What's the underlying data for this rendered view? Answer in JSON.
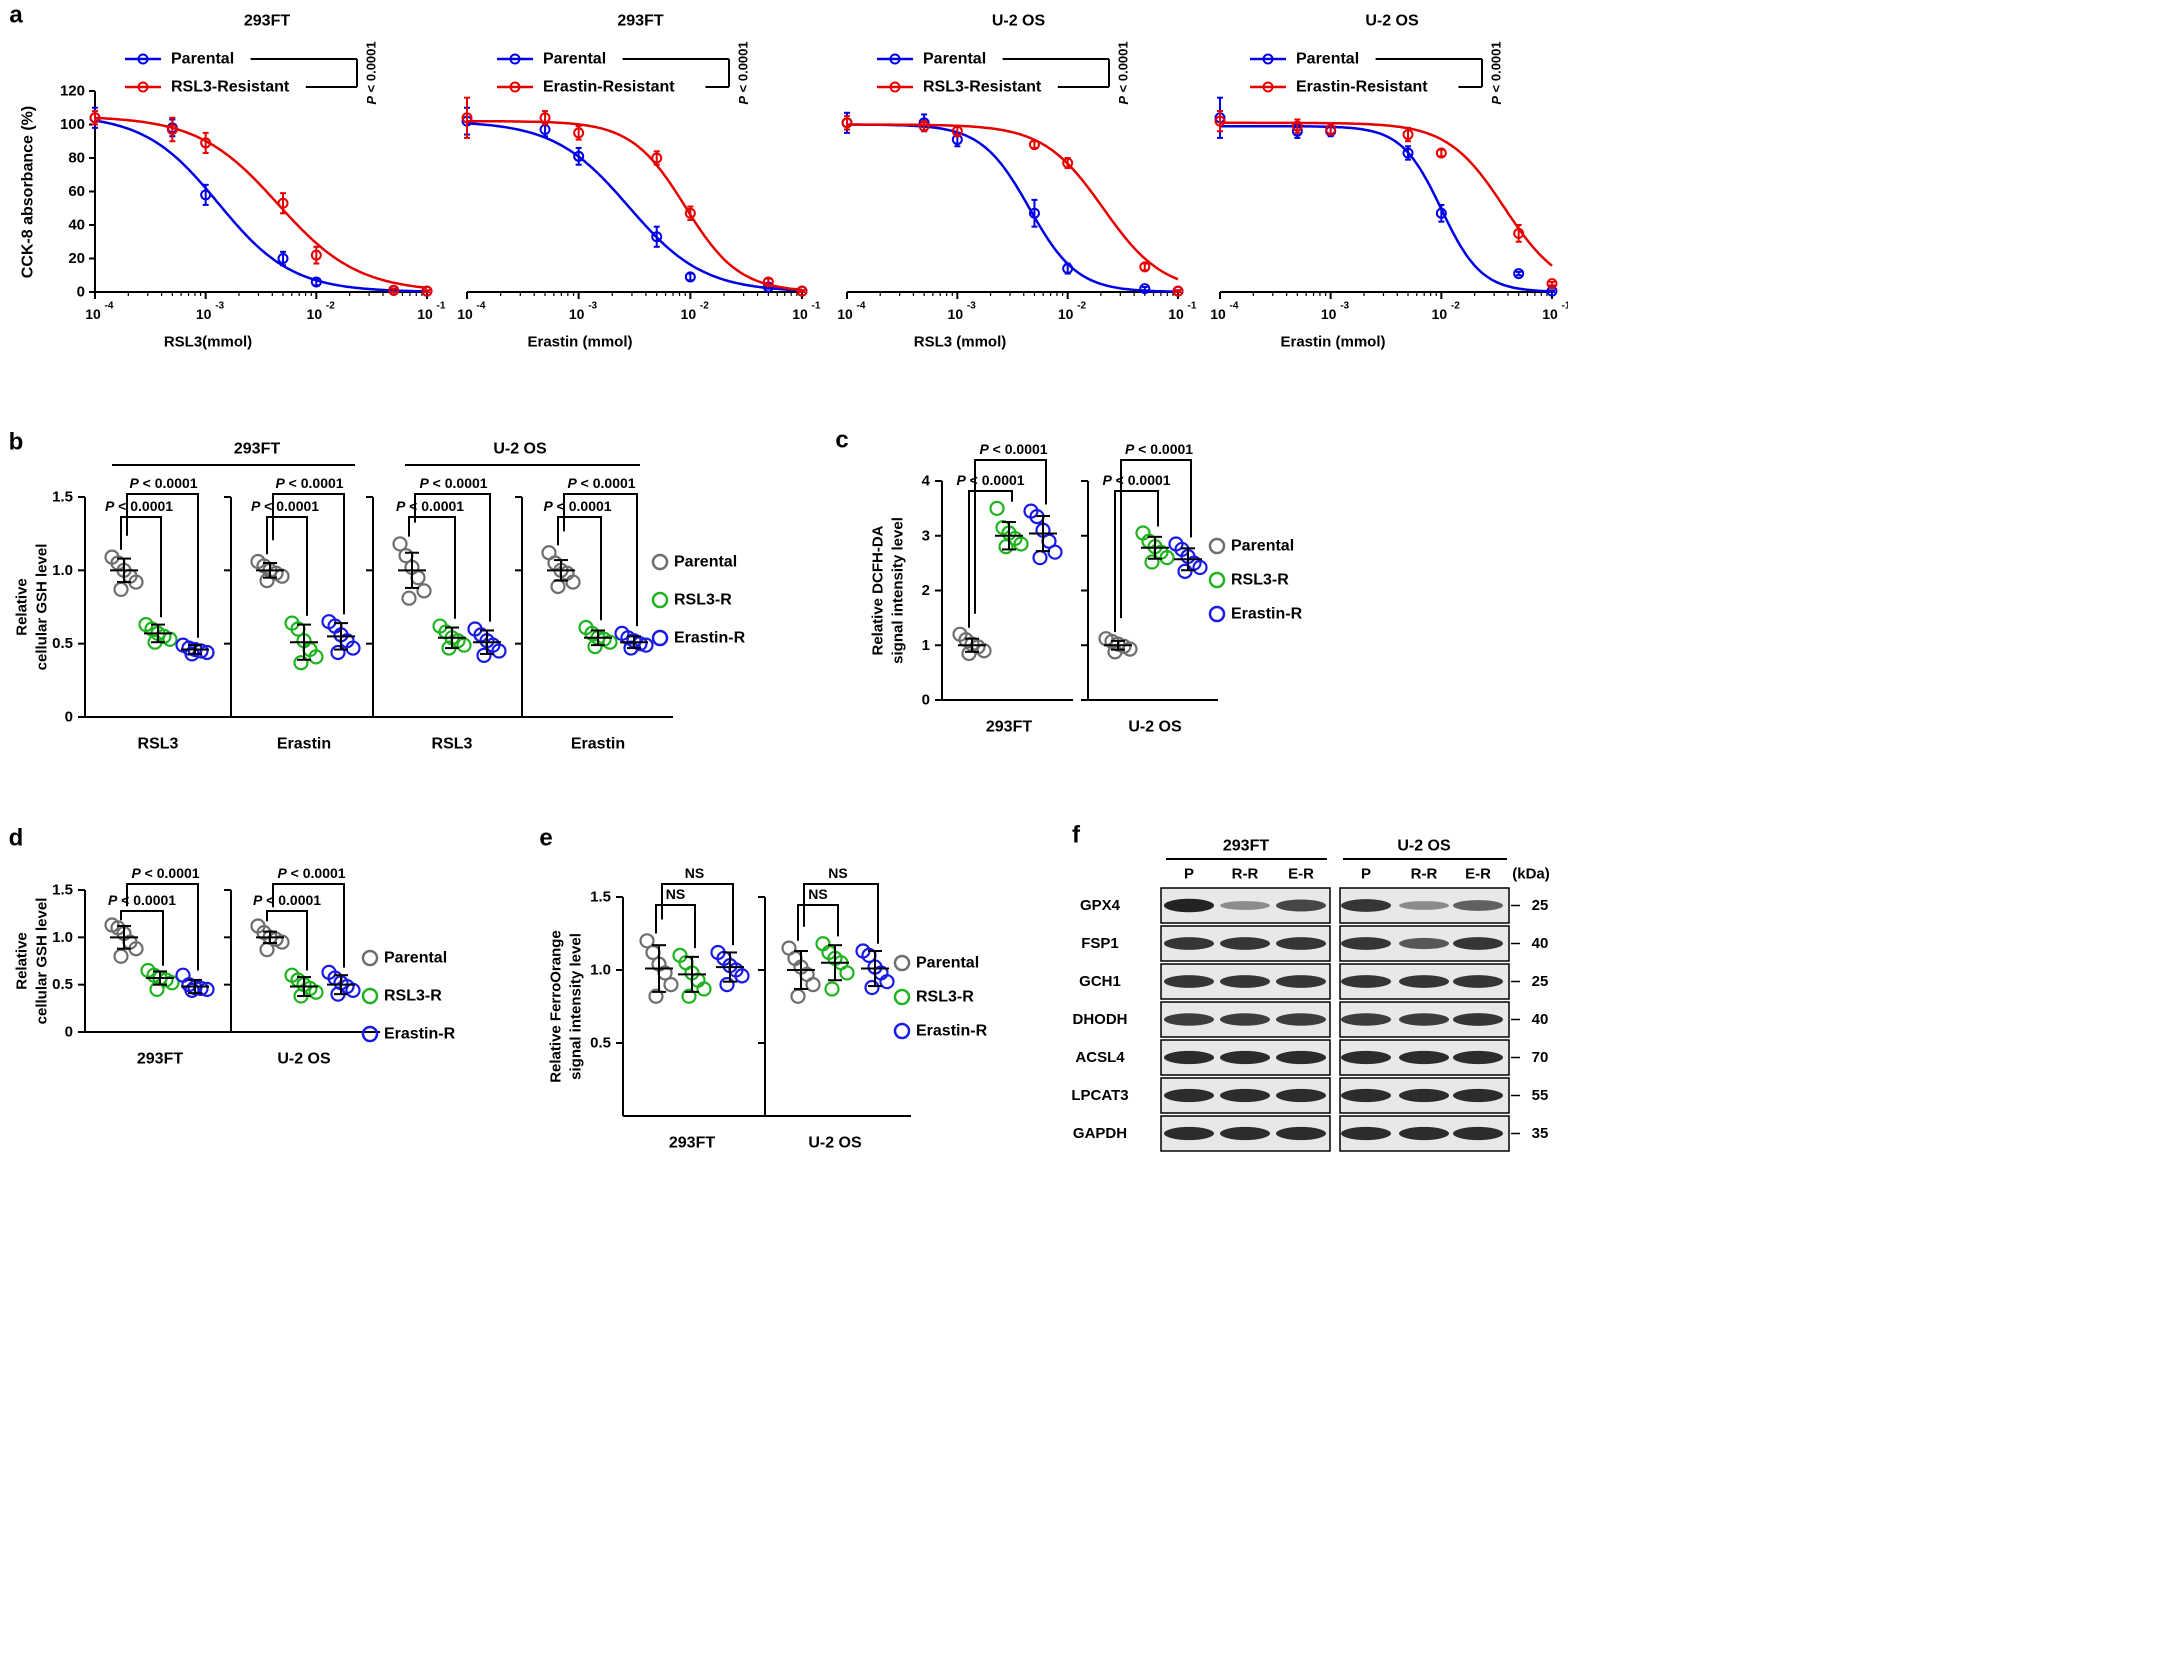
{
  "colors": {
    "parental": "#0000e6",
    "resistant": "#e60000",
    "gray": "#6e6e6e",
    "green": "#1fb31f",
    "blue": "#1a1ae6"
  },
  "chart_data": [
    {
      "panel": "a",
      "type": "line",
      "xscale": "log",
      "xlim": [
        0.0001,
        0.1
      ],
      "ylim": [
        0,
        120
      ],
      "ylabel": "CCK-8 absorbance (%)",
      "yticks": [
        "0",
        "20",
        "40",
        "60",
        "80",
        "100",
        "120"
      ],
      "xticks": [
        {
          "base": "10",
          "exp": "-4"
        },
        {
          "base": "10",
          "exp": "-3"
        },
        {
          "base": "10",
          "exp": "-2"
        },
        {
          "base": "10",
          "exp": "-1"
        }
      ],
      "pvalue_label": "P < 0.0001",
      "subplots": [
        {
          "title": "293FT",
          "xlabel": "RSL3(mmol)",
          "series": [
            {
              "name": "Parental",
              "color": "#0000e6",
              "x": [
                0.0001,
                0.0005,
                0.001,
                0.005,
                0.01,
                0.05,
                0.1
              ],
              "y": [
                104,
                98,
                58,
                20,
                6,
                1,
                0.5
              ],
              "err": [
                6,
                5,
                6,
                4,
                2,
                1,
                0.5
              ],
              "ic50": 0.0013,
              "hill": 1.3,
              "top": 106
            },
            {
              "name": "RSL3-Resistant",
              "color": "#e60000",
              "x": [
                0.0001,
                0.0005,
                0.001,
                0.005,
                0.01,
                0.05,
                0.1
              ],
              "y": [
                104,
                97,
                89,
                53,
                22,
                1,
                0.5
              ],
              "err": [
                4,
                7,
                6,
                6,
                5,
                1,
                0.5
              ],
              "ic50": 0.0045,
              "hill": 1.2,
              "top": 105
            }
          ]
        },
        {
          "title": "293FT",
          "xlabel": "Erastin (mmol)",
          "series": [
            {
              "name": "Parental",
              "color": "#0000e6",
              "x": [
                0.0001,
                0.0005,
                0.001,
                0.005,
                0.01,
                0.05,
                0.1
              ],
              "y": [
                102,
                97,
                81,
                33,
                9,
                3,
                0.5
              ],
              "err": [
                8,
                4,
                5,
                6,
                2,
                1,
                0.5
              ],
              "ic50": 0.0028,
              "hill": 1.3,
              "top": 102
            },
            {
              "name": "Erastin-Resistant",
              "color": "#e60000",
              "x": [
                0.0001,
                0.0005,
                0.001,
                0.005,
                0.01,
                0.05,
                0.1
              ],
              "y": [
                104,
                104,
                95,
                80,
                47,
                6,
                0.5
              ],
              "err": [
                12,
                4,
                4,
                4,
                4,
                2,
                0.5
              ],
              "ic50": 0.009,
              "hill": 1.8,
              "top": 102
            }
          ]
        },
        {
          "title": "U-2 OS",
          "xlabel": "RSL3 (mmol)",
          "series": [
            {
              "name": "Parental",
              "color": "#0000e6",
              "x": [
                0.0001,
                0.0005,
                0.001,
                0.005,
                0.01,
                0.05,
                0.1
              ],
              "y": [
                101,
                101,
                91,
                47,
                14,
                2,
                0.5
              ],
              "err": [
                6,
                5,
                4,
                8,
                3,
                1,
                0.5
              ],
              "ic50": 0.0045,
              "hill": 2.0,
              "top": 100
            },
            {
              "name": "RSL3-Resistant",
              "color": "#e60000",
              "x": [
                0.0001,
                0.0005,
                0.001,
                0.005,
                0.01,
                0.05,
                0.1
              ],
              "y": [
                101,
                99,
                96,
                88,
                77,
                15,
                0.5
              ],
              "err": [
                4,
                3,
                3,
                2,
                3,
                2,
                0.5
              ],
              "ic50": 0.021,
              "hill": 1.6,
              "top": 100
            }
          ]
        },
        {
          "title": "U-2 OS",
          "xlabel": "Erastin (mmol)",
          "series": [
            {
              "name": "Parental",
              "color": "#0000e6",
              "x": [
                0.0001,
                0.0005,
                0.001,
                0.005,
                0.01,
                0.05,
                0.1
              ],
              "y": [
                104,
                96,
                96,
                83,
                47,
                11,
                0.5
              ],
              "err": [
                12,
                4,
                3,
                4,
                5,
                1,
                0.5
              ],
              "ic50": 0.01,
              "hill": 2.4,
              "top": 99
            },
            {
              "name": "Erastin-Resistant",
              "color": "#e60000",
              "x": [
                0.0001,
                0.0005,
                0.001,
                0.005,
                0.01,
                0.05,
                0.1
              ],
              "y": [
                102,
                99,
                97,
                94,
                83,
                35,
                5
              ],
              "err": [
                6,
                4,
                3,
                4,
                2,
                5,
                1
              ],
              "ic50": 0.037,
              "hill": 1.7,
              "top": 101
            }
          ]
        }
      ]
    },
    {
      "panel": "b",
      "type": "scatter",
      "ylabel": [
        "Relative",
        "cellular GSH level"
      ],
      "ylim": [
        0,
        1.5
      ],
      "yticks": [
        "0",
        "0.5",
        "1.0",
        "1.5"
      ],
      "cell_lines": [
        "293FT",
        "U-2 OS"
      ],
      "legend": [
        "Parental",
        "RSL3-R",
        "Erastin-R"
      ],
      "groups": [
        {
          "label": "RSL3",
          "means": [
            1.0,
            0.57,
            0.46
          ],
          "sd": [
            0.08,
            0.06,
            0.03
          ],
          "points": [
            [
              1.09,
              1.05,
              1.0,
              0.96,
              0.92,
              0.87
            ],
            [
              0.63,
              0.6,
              0.57,
              0.55,
              0.53,
              0.51
            ],
            [
              0.49,
              0.47,
              0.46,
              0.45,
              0.44,
              0.43
            ]
          ],
          "pvals": [
            "P < 0.0001",
            "P < 0.0001"
          ]
        },
        {
          "label": "Erastin",
          "means": [
            1.0,
            0.51,
            0.55
          ],
          "sd": [
            0.05,
            0.12,
            0.09
          ],
          "points": [
            [
              1.06,
              1.03,
              1.0,
              0.98,
              0.96,
              0.93
            ],
            [
              0.64,
              0.6,
              0.52,
              0.46,
              0.41,
              0.37
            ],
            [
              0.65,
              0.62,
              0.56,
              0.52,
              0.47,
              0.44
            ]
          ],
          "pvals": [
            "P < 0.0001",
            "P < 0.0001"
          ]
        },
        {
          "label": "RSL3",
          "means": [
            1.0,
            0.54,
            0.51
          ],
          "sd": [
            0.12,
            0.07,
            0.08
          ],
          "points": [
            [
              1.18,
              1.1,
              1.02,
              0.95,
              0.86,
              0.81
            ],
            [
              0.62,
              0.58,
              0.54,
              0.52,
              0.49,
              0.47
            ],
            [
              0.6,
              0.56,
              0.52,
              0.49,
              0.45,
              0.42
            ]
          ],
          "pvals": [
            "P < 0.0001",
            "P < 0.0001"
          ]
        },
        {
          "label": "Erastin",
          "means": [
            1.0,
            0.54,
            0.51
          ],
          "sd": [
            0.07,
            0.05,
            0.04
          ],
          "points": [
            [
              1.12,
              1.05,
              1.0,
              0.98,
              0.92,
              0.89
            ],
            [
              0.61,
              0.57,
              0.54,
              0.53,
              0.51,
              0.48
            ],
            [
              0.57,
              0.54,
              0.52,
              0.5,
              0.49,
              0.47
            ]
          ],
          "pvals": [
            "P < 0.0001",
            "P < 0.0001"
          ]
        }
      ]
    },
    {
      "panel": "c",
      "type": "scatter",
      "ylabel": [
        "Relative DCFH-DA",
        "signal intensity level"
      ],
      "ylim": [
        0,
        4
      ],
      "yticks": [
        "0",
        "1",
        "2",
        "3",
        "4"
      ],
      "legend": [
        "Parental",
        "RSL3-R",
        "Erastin-R"
      ],
      "groups": [
        {
          "label": "293FT",
          "means": [
            1.0,
            3.0,
            3.04
          ],
          "sd": [
            0.12,
            0.25,
            0.32
          ],
          "points": [
            [
              1.2,
              1.1,
              1.02,
              0.97,
              0.9,
              0.85
            ],
            [
              3.5,
              3.15,
              3.05,
              2.95,
              2.85,
              2.8
            ],
            [
              3.45,
              3.35,
              3.1,
              2.9,
              2.7,
              2.6
            ]
          ],
          "pvals": [
            "P < 0.0001",
            "P < 0.0001"
          ]
        },
        {
          "label": "U-2 OS",
          "means": [
            1.0,
            2.78,
            2.57
          ],
          "sd": [
            0.08,
            0.2,
            0.2
          ],
          "points": [
            [
              1.12,
              1.07,
              1.02,
              0.98,
              0.93,
              0.88
            ],
            [
              3.05,
              2.9,
              2.8,
              2.7,
              2.6,
              2.52
            ],
            [
              2.85,
              2.75,
              2.62,
              2.5,
              2.42,
              2.35
            ]
          ],
          "pvals": [
            "P < 0.0001",
            "P < 0.0001"
          ]
        }
      ]
    },
    {
      "panel": "d",
      "type": "scatter",
      "ylabel": [
        "Relative",
        "cellular GSH level"
      ],
      "ylim": [
        0,
        1.5
      ],
      "yticks": [
        "0",
        "0.5",
        "1.0",
        "1.5"
      ],
      "legend": [
        "Parental",
        "RSL3-R",
        "Erastin-R"
      ],
      "groups": [
        {
          "label": "293FT",
          "means": [
            1.0,
            0.57,
            0.48
          ],
          "sd": [
            0.12,
            0.07,
            0.07
          ],
          "points": [
            [
              1.13,
              1.1,
              1.04,
              0.95,
              0.88,
              0.8
            ],
            [
              0.65,
              0.6,
              0.57,
              0.55,
              0.52,
              0.45
            ],
            [
              0.6,
              0.5,
              0.47,
              0.46,
              0.45,
              0.44
            ]
          ],
          "pvals": [
            "P < 0.0001",
            "P < 0.0001"
          ]
        },
        {
          "label": "U-2 OS",
          "means": [
            1.0,
            0.48,
            0.5
          ],
          "sd": [
            0.06,
            0.1,
            0.1
          ],
          "points": [
            [
              1.12,
              1.05,
              1.0,
              0.98,
              0.95,
              0.87
            ],
            [
              0.6,
              0.55,
              0.5,
              0.46,
              0.42,
              0.38
            ],
            [
              0.63,
              0.57,
              0.52,
              0.48,
              0.44,
              0.4
            ]
          ],
          "pvals": [
            "P < 0.0001",
            "P < 0.0001"
          ]
        }
      ]
    },
    {
      "panel": "e",
      "type": "scatter",
      "ylabel": [
        "Relative FerroOrange",
        "signal intensity level"
      ],
      "ylim": [
        0,
        1.5
      ],
      "yticks": [
        "0.5",
        "1.0",
        "1.5"
      ],
      "legend": [
        "Parental",
        "RSL3-R",
        "Erastin-R"
      ],
      "groups": [
        {
          "label": "293FT",
          "means": [
            1.01,
            0.97,
            1.02
          ],
          "sd": [
            0.16,
            0.12,
            0.1
          ],
          "points": [
            [
              1.2,
              1.12,
              1.04,
              0.98,
              0.9,
              0.82
            ],
            [
              1.1,
              1.05,
              0.98,
              0.93,
              0.87,
              0.82
            ],
            [
              1.12,
              1.08,
              1.03,
              1.0,
              0.96,
              0.9
            ]
          ],
          "pvals": [
            "NS",
            "NS"
          ]
        },
        {
          "label": "U-2 OS",
          "means": [
            1.0,
            1.05,
            1.01
          ],
          "sd": [
            0.13,
            0.12,
            0.12
          ],
          "points": [
            [
              1.15,
              1.08,
              1.02,
              0.97,
              0.9,
              0.82
            ],
            [
              1.18,
              1.12,
              1.08,
              1.05,
              0.98,
              0.87
            ],
            [
              1.13,
              1.1,
              1.02,
              0.98,
              0.92,
              0.88
            ]
          ],
          "pvals": [
            "NS",
            "NS"
          ]
        }
      ]
    },
    {
      "panel": "f",
      "type": "western_blot",
      "cell_lines": [
        "293FT",
        "U-2 OS"
      ],
      "lanes": [
        "P",
        "R-R",
        "E-R"
      ],
      "unit": "(kDa)",
      "rows": [
        {
          "protein": "GPX4",
          "kda": "25",
          "intensity": [
            [
              0.95,
              0.35,
              0.75
            ],
            [
              0.85,
              0.35,
              0.6
            ]
          ]
        },
        {
          "protein": "FSP1",
          "kda": "40",
          "intensity": [
            [
              0.85,
              0.85,
              0.85
            ],
            [
              0.85,
              0.65,
              0.85
            ]
          ]
        },
        {
          "protein": "GCH1",
          "kda": "25",
          "intensity": [
            [
              0.85,
              0.85,
              0.85
            ],
            [
              0.85,
              0.85,
              0.85
            ]
          ]
        },
        {
          "protein": "DHODH",
          "kda": "40",
          "intensity": [
            [
              0.8,
              0.8,
              0.8
            ],
            [
              0.8,
              0.8,
              0.85
            ]
          ]
        },
        {
          "protein": "ACSL4",
          "kda": "70",
          "intensity": [
            [
              0.9,
              0.9,
              0.9
            ],
            [
              0.9,
              0.9,
              0.9
            ]
          ]
        },
        {
          "protein": "LPCAT3",
          "kda": "55",
          "intensity": [
            [
              0.9,
              0.9,
              0.9
            ],
            [
              0.9,
              0.9,
              0.9
            ]
          ]
        },
        {
          "protein": "GAPDH",
          "kda": "35",
          "intensity": [
            [
              0.9,
              0.9,
              0.9
            ],
            [
              0.9,
              0.9,
              0.9
            ]
          ]
        }
      ]
    }
  ]
}
